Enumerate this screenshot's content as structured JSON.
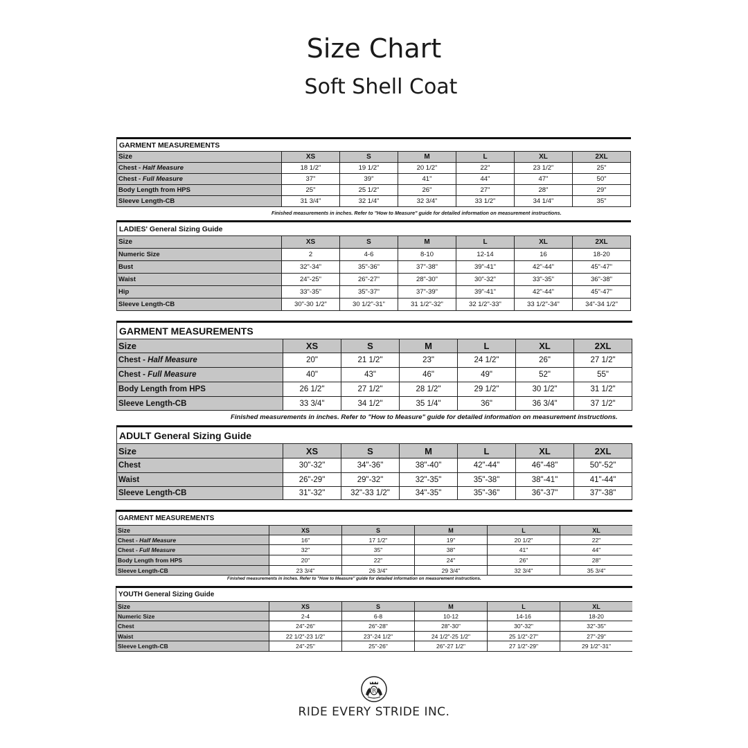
{
  "title": "Size Chart",
  "subtitle": "Soft Shell Coat",
  "note": "Finished measurements in inches. Refer to \"How to Measure\" guide for detailed information on measurement instructions.",
  "tables": [
    {
      "title": "GARMENT MEASUREMENTS",
      "size_label": "Size",
      "sizes": [
        "XS",
        "S",
        "M",
        "L",
        "XL",
        "2XL"
      ],
      "rows": [
        {
          "label": "Chest - ",
          "label_em": "Half Measure",
          "values": [
            "18 1/2\"",
            "19 1/2\"",
            "20 1/2\"",
            "22\"",
            "23 1/2\"",
            "25\""
          ]
        },
        {
          "label": "Chest - ",
          "label_em": "Full Measure",
          "values": [
            "37\"",
            "39\"",
            "41\"",
            "44\"",
            "47\"",
            "50\""
          ]
        },
        {
          "label": "Body Length from HPS",
          "label_em": "",
          "values": [
            "25\"",
            "25 1/2\"",
            "26\"",
            "27\"",
            "28\"",
            "29\""
          ]
        },
        {
          "label": "Sleeve Length-CB",
          "label_em": "",
          "values": [
            "31 3/4\"",
            "32 1/4\"",
            "32 3/4\"",
            "33 1/2\"",
            "34 1/4\"",
            "35\""
          ]
        }
      ]
    },
    {
      "title": "LADIES' General Sizing Guide",
      "size_label": "Size",
      "sizes": [
        "XS",
        "S",
        "M",
        "L",
        "XL",
        "2XL"
      ],
      "rows": [
        {
          "label": "Numeric Size",
          "label_em": "",
          "values": [
            "2",
            "4-6",
            "8-10",
            "12-14",
            "16",
            "18-20"
          ]
        },
        {
          "label": "Bust",
          "label_em": "",
          "values": [
            "32\"-34\"",
            "35\"-36\"",
            "37\"-38\"",
            "39\"-41\"",
            "42\"-44\"",
            "45\"-47\""
          ]
        },
        {
          "label": "Waist",
          "label_em": "",
          "values": [
            "24\"-25\"",
            "26\"-27\"",
            "28\"-30\"",
            "30\"-32\"",
            "33\"-35\"",
            "36\"-38\""
          ]
        },
        {
          "label": "Hip",
          "label_em": "",
          "values": [
            "33\"-35\"",
            "35\"-37\"",
            "37\"-39\"",
            "39\"-41\"",
            "42\"-44\"",
            "45\"-47\""
          ]
        },
        {
          "label": "Sleeve Length-CB",
          "label_em": "",
          "values": [
            "30\"-30 1/2\"",
            "30 1/2\"-31\"",
            "31 1/2\"-32\"",
            "32 1/2\"-33\"",
            "33 1/2\"-34\"",
            "34\"-34 1/2\""
          ]
        }
      ]
    },
    {
      "title": "GARMENT MEASUREMENTS",
      "size_label": "Size",
      "sizes": [
        "XS",
        "S",
        "M",
        "L",
        "XL",
        "2XL"
      ],
      "rows": [
        {
          "label": "Chest - ",
          "label_em": "Half Measure",
          "values": [
            "20\"",
            "21 1/2\"",
            "23\"",
            "24 1/2\"",
            "26\"",
            "27 1/2\""
          ]
        },
        {
          "label": "Chest - ",
          "label_em": "Full Measure",
          "values": [
            "40\"",
            "43\"",
            "46\"",
            "49\"",
            "52\"",
            "55\""
          ]
        },
        {
          "label": "Body Length from HPS",
          "label_em": "",
          "values": [
            "26 1/2\"",
            "27 1/2\"",
            "28 1/2\"",
            "29 1/2\"",
            "30 1/2\"",
            "31 1/2\""
          ]
        },
        {
          "label": "Sleeve Length-CB",
          "label_em": "",
          "values": [
            "33 3/4\"",
            "34 1/2\"",
            "35 1/4\"",
            "36\"",
            "36 3/4\"",
            "37 1/2\""
          ]
        }
      ]
    },
    {
      "title": "ADULT General Sizing Guide",
      "size_label": "Size",
      "sizes": [
        "XS",
        "S",
        "M",
        "L",
        "XL",
        "2XL"
      ],
      "rows": [
        {
          "label": "Chest",
          "label_em": "",
          "values": [
            "30\"-32\"",
            "34\"-36\"",
            "38\"-40\"",
            "42\"-44\"",
            "46\"-48\"",
            "50\"-52\""
          ]
        },
        {
          "label": "Waist",
          "label_em": "",
          "values": [
            "26\"-29\"",
            "29\"-32\"",
            "32\"-35\"",
            "35\"-38\"",
            "38\"-41\"",
            "41\"-44\""
          ]
        },
        {
          "label": "Sleeve Length-CB",
          "label_em": "",
          "values": [
            "31\"-32\"",
            "32\"-33 1/2\"",
            "34\"-35\"",
            "35\"-36\"",
            "36\"-37\"",
            "37\"-38\""
          ]
        }
      ]
    },
    {
      "title": "GARMENT MEASUREMENTS",
      "size_label": "Size",
      "sizes": [
        "XS",
        "S",
        "M",
        "L",
        "XL"
      ],
      "rows": [
        {
          "label": "Chest - ",
          "label_em": "Half Measure",
          "values": [
            "16\"",
            "17 1/2\"",
            "19\"",
            "20 1/2\"",
            "22\""
          ]
        },
        {
          "label": "Chest - ",
          "label_em": "Full Measure",
          "values": [
            "32\"",
            "35\"",
            "38\"",
            "41\"",
            "44\""
          ]
        },
        {
          "label": "Body Length from HPS",
          "label_em": "",
          "values": [
            "20\"",
            "22\"",
            "24\"",
            "26\"",
            "28\""
          ]
        },
        {
          "label": "Sleeve Length-CB",
          "label_em": "",
          "values": [
            "23 3/4\"",
            "26 3/4\"",
            "29 3/4\"",
            "32 3/4\"",
            "35 3/4\""
          ]
        }
      ]
    },
    {
      "title": "YOUTH General Sizing Guide",
      "size_label": "Size",
      "sizes": [
        "XS",
        "S",
        "M",
        "L",
        "XL"
      ],
      "rows": [
        {
          "label": "Numeric Size",
          "label_em": "",
          "values": [
            "2-4",
            "6-8",
            "10-12",
            "14-16",
            "18-20"
          ]
        },
        {
          "label": "Chest",
          "label_em": "",
          "values": [
            "24\"-26\"",
            "26\"-28\"",
            "28\"-30\"",
            "30\"-32\"",
            "32\"-35\""
          ]
        },
        {
          "label": "Waist",
          "label_em": "",
          "values": [
            "22 1/2\"-23 1/2\"",
            "23\"-24 1/2\"",
            "24 1/2\"-25 1/2\"",
            "25 1/2\"-27\"",
            "27\"-29\""
          ]
        },
        {
          "label": "Sleeve Length-CB",
          "label_em": "",
          "values": [
            "24\"-25\"",
            "25\"-26\"",
            "26\"-27 1/2\"",
            "27 1/2\"-29\"",
            "29 1/2\"-31\""
          ]
        }
      ]
    }
  ],
  "brand": {
    "name": "RIDE EVERY STRIDE INC.",
    "logo_icon": "crest-logo-icon"
  }
}
